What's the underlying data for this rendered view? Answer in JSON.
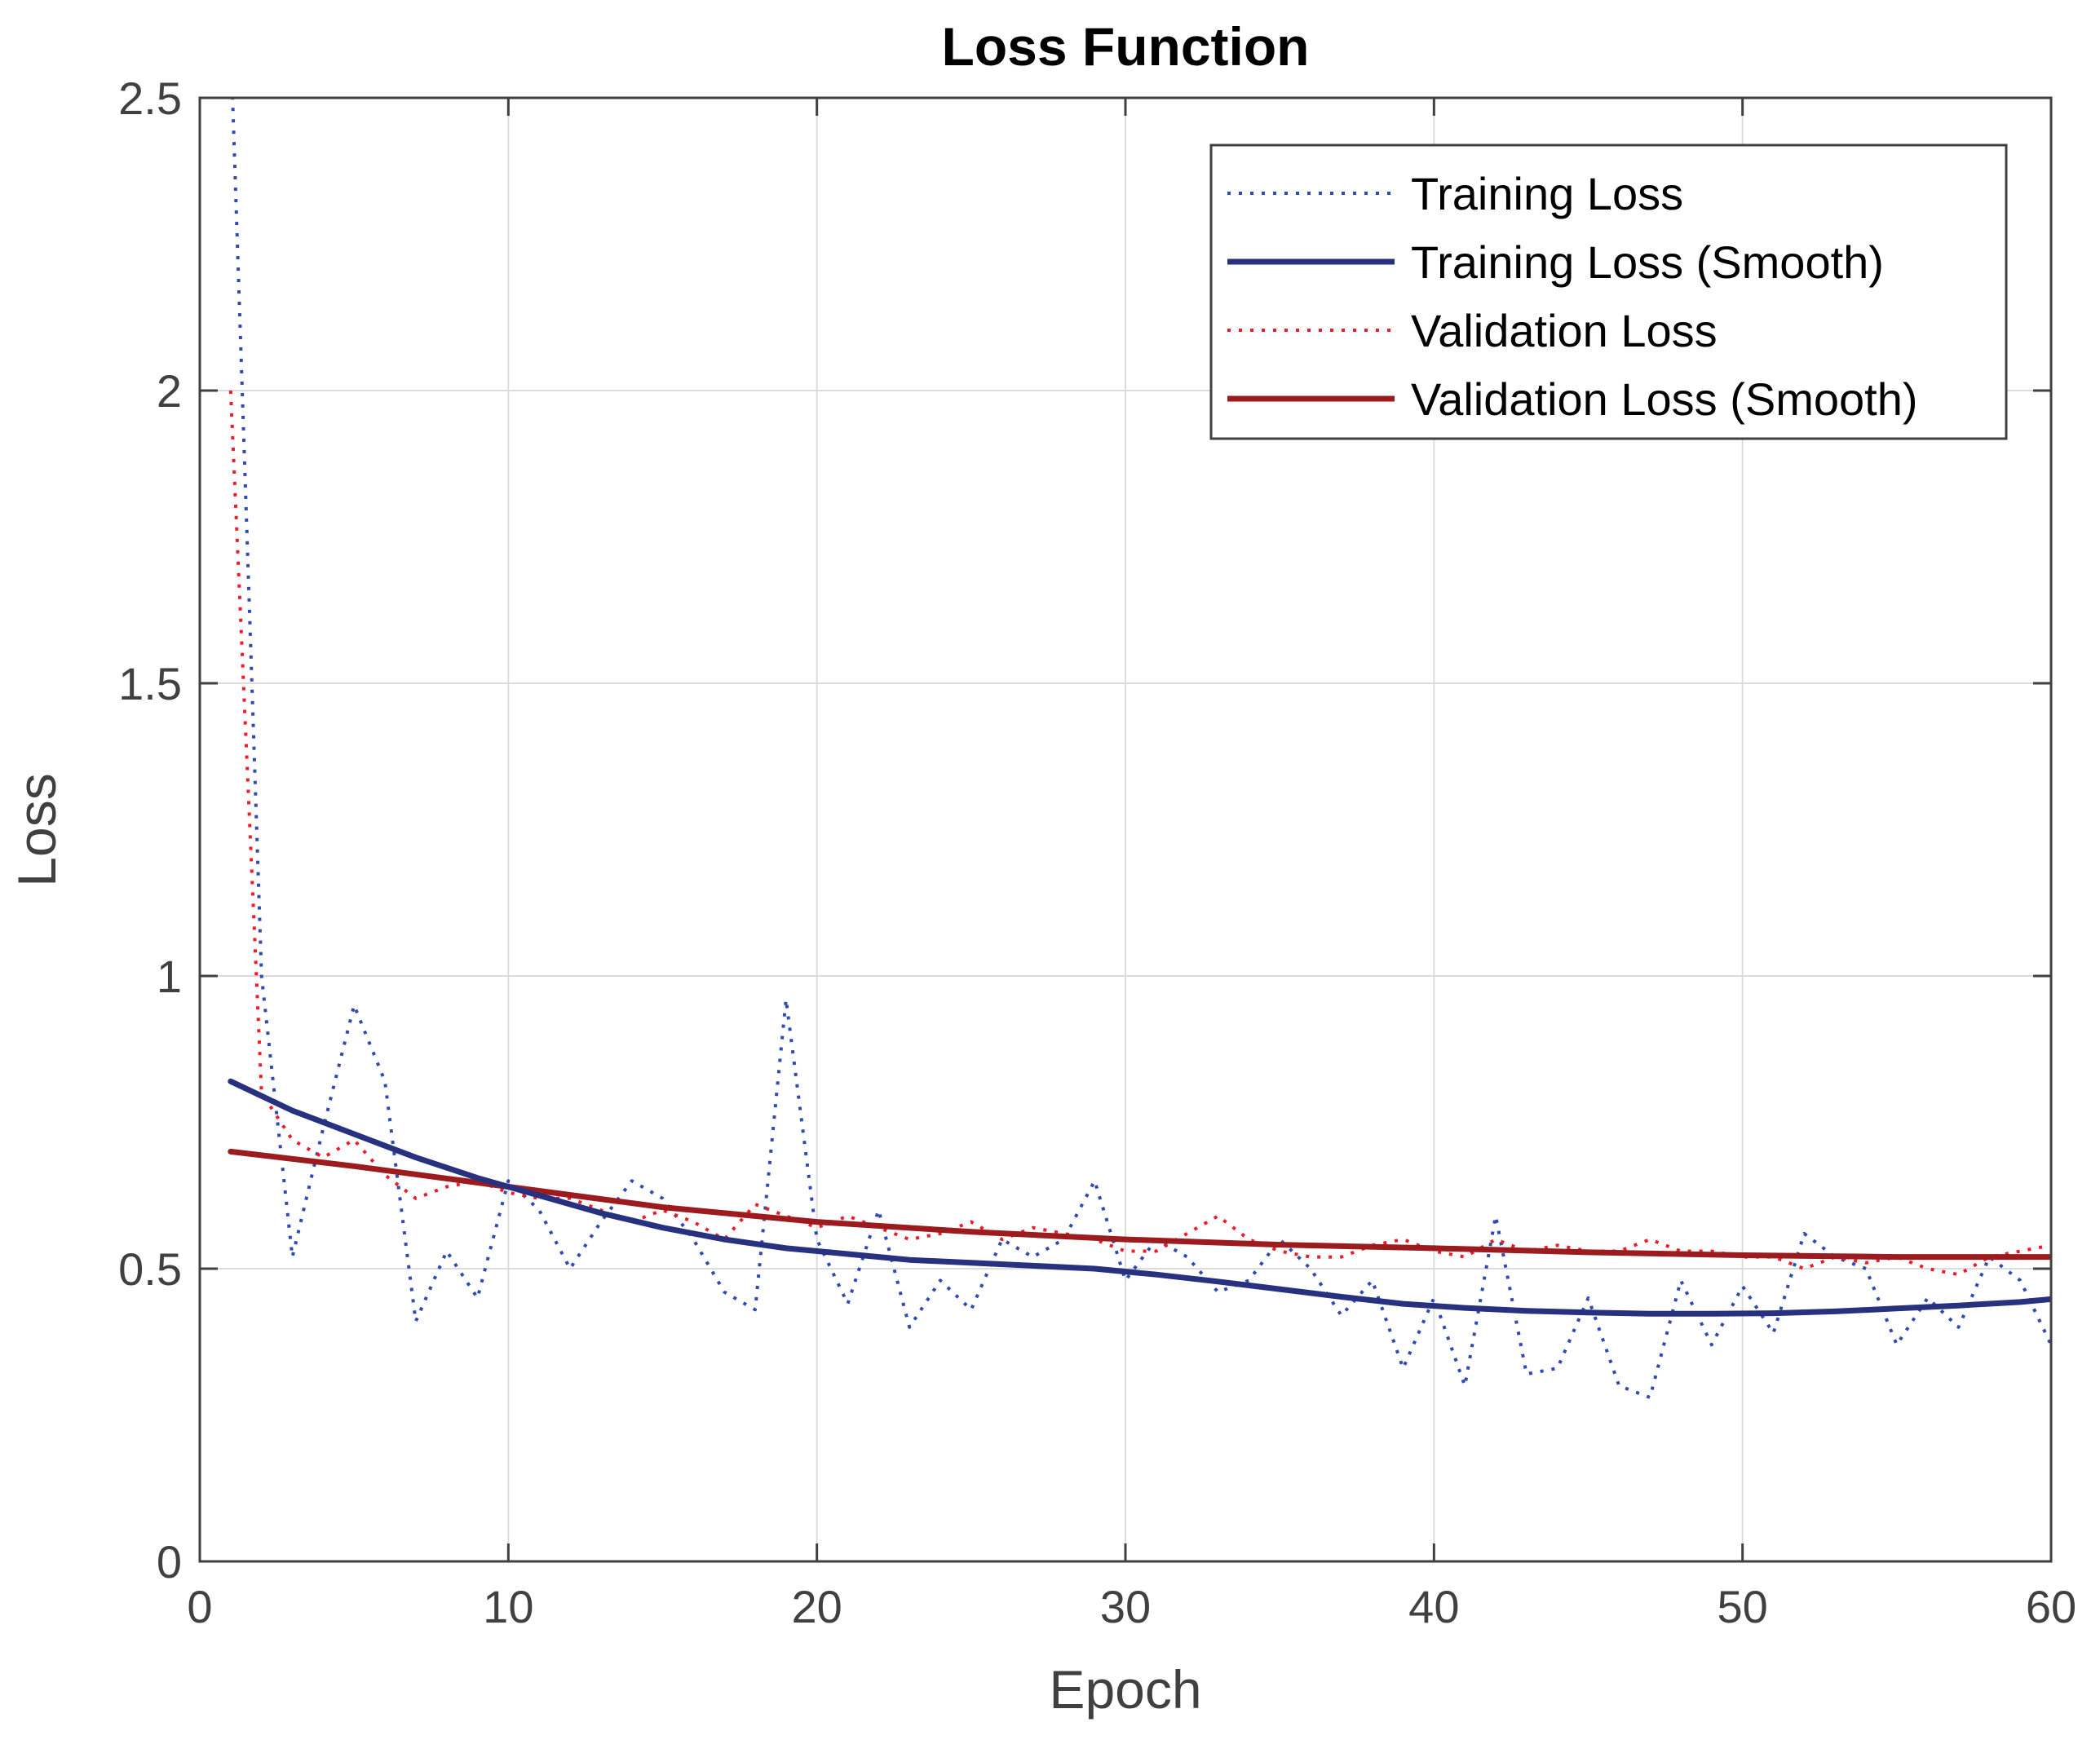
{
  "chart_data": {
    "type": "line",
    "title": "Loss Function",
    "xlabel": "Epoch",
    "ylabel": "Loss",
    "xlim": [
      0,
      60
    ],
    "ylim": [
      0,
      2.5
    ],
    "xticks": [
      0,
      10,
      20,
      30,
      40,
      50,
      60
    ],
    "yticks": [
      0,
      0.5,
      1,
      1.5,
      2,
      2.5
    ],
    "xtick_labels": [
      "0",
      "10",
      "20",
      "30",
      "40",
      "50",
      "60"
    ],
    "ytick_labels": [
      "0",
      "0.5",
      "1",
      "1.5",
      "2",
      "2.5"
    ],
    "grid": true,
    "legend_position": "top-right",
    "series": [
      {
        "name": "Training Loss",
        "color": "#2f4ab3",
        "style": "dotted",
        "x": [
          1,
          2,
          3,
          4,
          5,
          6,
          7,
          8,
          9,
          10,
          11,
          12,
          13,
          14,
          15,
          16,
          17,
          18,
          19,
          20,
          21,
          22,
          23,
          24,
          25,
          26,
          27,
          28,
          29,
          30,
          31,
          32,
          33,
          34,
          35,
          36,
          37,
          38,
          39,
          40,
          41,
          42,
          43,
          44,
          45,
          46,
          47,
          48,
          49,
          50,
          51,
          52,
          53,
          54,
          55,
          56,
          57,
          58,
          59,
          60
        ],
        "y": [
          2.6,
          1.0,
          0.52,
          0.74,
          0.95,
          0.82,
          0.41,
          0.53,
          0.45,
          0.65,
          0.6,
          0.5,
          0.58,
          0.65,
          0.62,
          0.55,
          0.46,
          0.43,
          0.96,
          0.55,
          0.44,
          0.6,
          0.4,
          0.48,
          0.43,
          0.55,
          0.52,
          0.55,
          0.65,
          0.48,
          0.55,
          0.52,
          0.46,
          0.48,
          0.55,
          0.5,
          0.42,
          0.48,
          0.33,
          0.45,
          0.3,
          0.59,
          0.32,
          0.33,
          0.45,
          0.3,
          0.28,
          0.48,
          0.37,
          0.47,
          0.39,
          0.56,
          0.52,
          0.5,
          0.37,
          0.45,
          0.4,
          0.52,
          0.48,
          0.37
        ]
      },
      {
        "name": "Training Loss (Smooth)",
        "color": "#27317f",
        "style": "solid",
        "x": [
          1,
          3,
          5,
          7,
          9,
          11,
          13,
          15,
          17,
          19,
          21,
          23,
          25,
          27,
          29,
          31,
          33,
          35,
          37,
          39,
          41,
          43,
          45,
          47,
          49,
          51,
          53,
          55,
          57,
          59,
          60
        ],
        "y": [
          0.82,
          0.77,
          0.73,
          0.69,
          0.655,
          0.625,
          0.595,
          0.57,
          0.55,
          0.535,
          0.525,
          0.515,
          0.51,
          0.505,
          0.5,
          0.49,
          0.478,
          0.465,
          0.452,
          0.44,
          0.433,
          0.428,
          0.425,
          0.423,
          0.423,
          0.424,
          0.427,
          0.432,
          0.437,
          0.443,
          0.448
        ]
      },
      {
        "name": "Validation Loss",
        "color": "#ee1c25",
        "style": "dotted",
        "x": [
          1,
          2,
          3,
          4,
          5,
          6,
          7,
          8,
          9,
          10,
          11,
          12,
          13,
          14,
          15,
          16,
          17,
          18,
          19,
          20,
          21,
          22,
          23,
          24,
          25,
          26,
          27,
          28,
          29,
          30,
          31,
          32,
          33,
          34,
          35,
          36,
          37,
          38,
          39,
          40,
          41,
          42,
          43,
          44,
          45,
          46,
          47,
          48,
          49,
          50,
          51,
          52,
          53,
          54,
          55,
          56,
          57,
          58,
          59,
          60
        ],
        "y": [
          2.0,
          0.8,
          0.72,
          0.69,
          0.72,
          0.66,
          0.62,
          0.64,
          0.65,
          0.63,
          0.62,
          0.62,
          0.6,
          0.58,
          0.6,
          0.58,
          0.55,
          0.61,
          0.59,
          0.57,
          0.59,
          0.57,
          0.55,
          0.56,
          0.58,
          0.55,
          0.57,
          0.56,
          0.55,
          0.53,
          0.53,
          0.56,
          0.59,
          0.55,
          0.53,
          0.52,
          0.52,
          0.54,
          0.55,
          0.53,
          0.52,
          0.55,
          0.53,
          0.54,
          0.53,
          0.53,
          0.55,
          0.53,
          0.53,
          0.52,
          0.52,
          0.5,
          0.52,
          0.51,
          0.52,
          0.5,
          0.49,
          0.52,
          0.53,
          0.54
        ]
      },
      {
        "name": "Validation Loss (Smooth)",
        "color": "#9b1b1f",
        "style": "solid",
        "x": [
          1,
          5,
          10,
          15,
          20,
          25,
          30,
          35,
          40,
          45,
          50,
          55,
          60
        ],
        "y": [
          0.7,
          0.675,
          0.64,
          0.605,
          0.58,
          0.563,
          0.55,
          0.541,
          0.535,
          0.528,
          0.523,
          0.52,
          0.52
        ]
      }
    ]
  }
}
